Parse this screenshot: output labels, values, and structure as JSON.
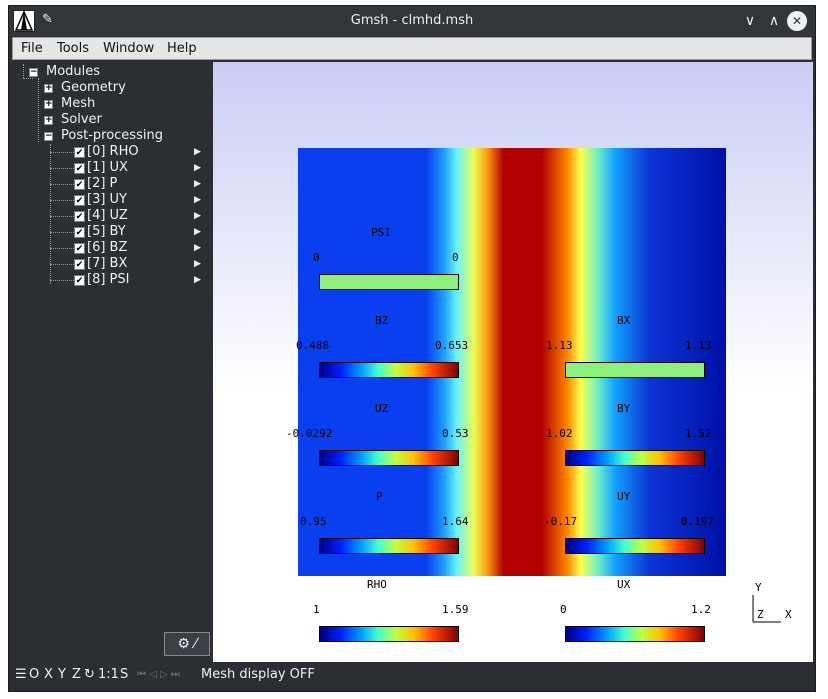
{
  "window": {
    "title": "Gmsh - clmhd.msh"
  },
  "titlebar": {
    "minimize": "∨",
    "maximize": "∧",
    "close": "✕"
  },
  "menu": [
    {
      "label": "File"
    },
    {
      "label": "Tools"
    },
    {
      "label": "Window"
    },
    {
      "label": "Help"
    }
  ],
  "tree": {
    "root": "Modules",
    "modules": [
      {
        "label": "Geometry",
        "expanded": false
      },
      {
        "label": "Mesh",
        "expanded": false
      },
      {
        "label": "Solver",
        "expanded": false
      },
      {
        "label": "Post-processing",
        "expanded": true
      }
    ],
    "views": [
      {
        "label": "[0] RHO",
        "checked": true
      },
      {
        "label": "[1] UX",
        "checked": true
      },
      {
        "label": "[2] P",
        "checked": true
      },
      {
        "label": "[3] UY",
        "checked": true
      },
      {
        "label": "[4] UZ",
        "checked": true
      },
      {
        "label": "[5] BY",
        "checked": true
      },
      {
        "label": "[6] BZ",
        "checked": true
      },
      {
        "label": "[7] BX",
        "checked": true
      },
      {
        "label": "[8] PSI",
        "checked": true
      }
    ],
    "gear_label": "⚙ ⁄"
  },
  "scales": [
    {
      "name": "PSI",
      "min": "0",
      "max": "0"
    },
    {
      "name": "BZ",
      "min": "0.488",
      "max": "0.653"
    },
    {
      "name": "BX",
      "min": "1.13",
      "max": "1.13"
    },
    {
      "name": "UZ",
      "min": "-0.0292",
      "max": "0.53"
    },
    {
      "name": "BY",
      "min": "1.02",
      "max": "1.52"
    },
    {
      "name": "P",
      "min": "0.95",
      "max": "1.64"
    },
    {
      "name": "UY",
      "min": "-0.17",
      "max": "0.197"
    },
    {
      "name": "RHO",
      "min": "1",
      "max": "1.59"
    },
    {
      "name": "UX",
      "min": "0",
      "max": "1.2"
    }
  ],
  "axes": {
    "y": "Y",
    "z": "Z",
    "x": "X"
  },
  "status": {
    "menu_icon": "☰",
    "views": [
      "O",
      "X",
      "Y",
      "Z"
    ],
    "rotate_icon": "↻",
    "scale": "1:1",
    "s_label": "S",
    "playback": "⏮ ◁ ▷ ⏭",
    "message": "Mesh display OFF"
  }
}
